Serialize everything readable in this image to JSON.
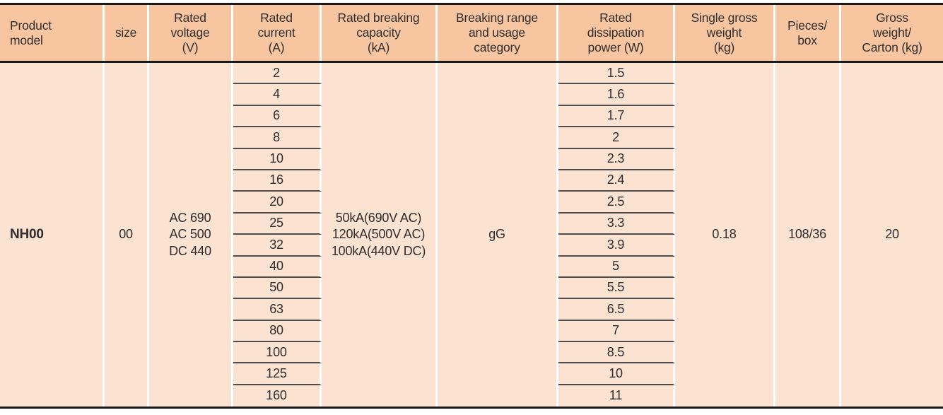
{
  "table": {
    "columns": [
      {
        "key": "product_model",
        "label": "Product\nmodel"
      },
      {
        "key": "size",
        "label": "size"
      },
      {
        "key": "rated_voltage",
        "label": "Rated\nvoltage\n(V)"
      },
      {
        "key": "rated_current",
        "label": "Rated\ncurrent\n(A)"
      },
      {
        "key": "breaking_capacity",
        "label": "Rated breaking\ncapacity\n(kA)"
      },
      {
        "key": "usage_category",
        "label": "Breaking range\nand usage\ncategory"
      },
      {
        "key": "dissipation_power",
        "label": "Rated\ndissipation\npower (W)"
      },
      {
        "key": "single_gross_weight",
        "label": "Single gross\nweight\n(kg)"
      },
      {
        "key": "pieces_per_box",
        "label": "Pieces/\nbox"
      },
      {
        "key": "gross_weight_carton",
        "label": "Gross\nweight/\nCarton (kg)"
      }
    ],
    "merged": {
      "product_model": "NH00",
      "size": "00",
      "rated_voltage": "AC 690\nAC 500\nDC 440",
      "breaking_capacity": "50kA(690V AC)\n120kA(500V AC)\n100kA(440V DC)",
      "usage_category": "gG",
      "single_gross_weight": "0.18",
      "pieces_per_box": "108/36",
      "gross_weight_carton": "20"
    },
    "rows": [
      {
        "rated_current": "2",
        "dissipation_power": "1.5"
      },
      {
        "rated_current": "4",
        "dissipation_power": "1.6"
      },
      {
        "rated_current": "6",
        "dissipation_power": "1.7"
      },
      {
        "rated_current": "8",
        "dissipation_power": "2"
      },
      {
        "rated_current": "10",
        "dissipation_power": "2.3"
      },
      {
        "rated_current": "16",
        "dissipation_power": "2.4"
      },
      {
        "rated_current": "20",
        "dissipation_power": "2.5"
      },
      {
        "rated_current": "25",
        "dissipation_power": "3.3"
      },
      {
        "rated_current": "32",
        "dissipation_power": "3.9"
      },
      {
        "rated_current": "40",
        "dissipation_power": "5"
      },
      {
        "rated_current": "50",
        "dissipation_power": "5.5"
      },
      {
        "rated_current": "63",
        "dissipation_power": "6.5"
      },
      {
        "rated_current": "80",
        "dissipation_power": "7"
      },
      {
        "rated_current": "100",
        "dissipation_power": "8.5"
      },
      {
        "rated_current": "125",
        "dissipation_power": "10"
      },
      {
        "rated_current": "160",
        "dissipation_power": "11"
      }
    ]
  },
  "colors": {
    "header_bg": "#f8c5a1",
    "body_bg": "#fce2d0",
    "border_dark": "#1a1a1a",
    "row_divider": "#4d4d4d",
    "separator": "#ffffff",
    "text": "#2e2e2e"
  }
}
